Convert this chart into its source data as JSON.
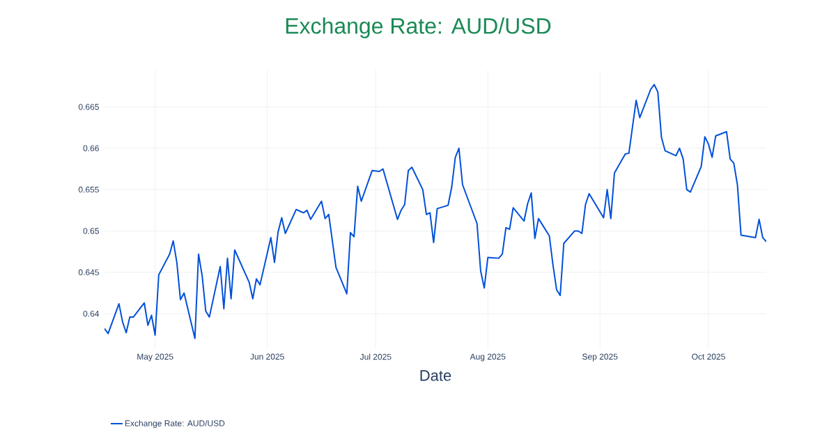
{
  "chart_data": {
    "type": "line",
    "title": "Exchange Rate: AUD/USD",
    "xlabel": "Date",
    "x": [
      "2025-04-17",
      "2025-04-18",
      "2025-04-21",
      "2025-04-22",
      "2025-04-23",
      "2025-04-24",
      "2025-04-25",
      "2025-04-28",
      "2025-04-29",
      "2025-04-30",
      "2025-05-01",
      "2025-05-02",
      "2025-05-05",
      "2025-05-06",
      "2025-05-07",
      "2025-05-08",
      "2025-05-09",
      "2025-05-12",
      "2025-05-13",
      "2025-05-14",
      "2025-05-15",
      "2025-05-16",
      "2025-05-19",
      "2025-05-20",
      "2025-05-21",
      "2025-05-22",
      "2025-05-23",
      "2025-05-27",
      "2025-05-28",
      "2025-05-29",
      "2025-05-30",
      "2025-06-02",
      "2025-06-03",
      "2025-06-04",
      "2025-06-05",
      "2025-06-06",
      "2025-06-09",
      "2025-06-10",
      "2025-06-11",
      "2025-06-12",
      "2025-06-13",
      "2025-06-16",
      "2025-06-17",
      "2025-06-18",
      "2025-06-20",
      "2025-06-23",
      "2025-06-24",
      "2025-06-25",
      "2025-06-26",
      "2025-06-27",
      "2025-06-30",
      "2025-07-02",
      "2025-07-03",
      "2025-07-07",
      "2025-07-08",
      "2025-07-09",
      "2025-07-10",
      "2025-07-11",
      "2025-07-14",
      "2025-07-15",
      "2025-07-16",
      "2025-07-17",
      "2025-07-18",
      "2025-07-21",
      "2025-07-22",
      "2025-07-23",
      "2025-07-24",
      "2025-07-25",
      "2025-07-29",
      "2025-07-30",
      "2025-07-31",
      "2025-08-01",
      "2025-08-04",
      "2025-08-05",
      "2025-08-06",
      "2025-08-07",
      "2025-08-08",
      "2025-08-11",
      "2025-08-12",
      "2025-08-13",
      "2025-08-14",
      "2025-08-15",
      "2025-08-18",
      "2025-08-19",
      "2025-08-20",
      "2025-08-21",
      "2025-08-22",
      "2025-08-25",
      "2025-08-26",
      "2025-08-27",
      "2025-08-28",
      "2025-08-29",
      "2025-09-02",
      "2025-09-03",
      "2025-09-04",
      "2025-09-05",
      "2025-09-08",
      "2025-09-09",
      "2025-09-11",
      "2025-09-12",
      "2025-09-15",
      "2025-09-16",
      "2025-09-17",
      "2025-09-18",
      "2025-09-19",
      "2025-09-22",
      "2025-09-23",
      "2025-09-24",
      "2025-09-25",
      "2025-09-26",
      "2025-09-29",
      "2025-09-30",
      "2025-10-01",
      "2025-10-02",
      "2025-10-03",
      "2025-10-06",
      "2025-10-07",
      "2025-10-08",
      "2025-10-09",
      "2025-10-10",
      "2025-10-14",
      "2025-10-15",
      "2025-10-16",
      "2025-10-17"
    ],
    "series": [
      {
        "name": "Exchange Rate: AUD/USD",
        "color": "#0050d8",
        "values": [
          0.6382,
          0.6376,
          0.6412,
          0.639,
          0.6377,
          0.6396,
          0.6396,
          0.6413,
          0.6386,
          0.6398,
          0.6374,
          0.6447,
          0.6472,
          0.6488,
          0.6462,
          0.6417,
          0.6425,
          0.637,
          0.6472,
          0.6446,
          0.6403,
          0.6396,
          0.6457,
          0.6406,
          0.6467,
          0.6418,
          0.6477,
          0.6438,
          0.6418,
          0.6442,
          0.6435,
          0.6492,
          0.6462,
          0.6499,
          0.6516,
          0.6497,
          0.6526,
          0.6524,
          0.6522,
          0.6525,
          0.6514,
          0.6536,
          0.6515,
          0.652,
          0.6456,
          0.6424,
          0.6498,
          0.6493,
          0.6554,
          0.6536,
          0.6573,
          0.6572,
          0.6575,
          0.6514,
          0.6525,
          0.6532,
          0.6573,
          0.6577,
          0.655,
          0.652,
          0.6522,
          0.6486,
          0.6527,
          0.6531,
          0.6553,
          0.6589,
          0.66,
          0.6556,
          0.6509,
          0.6452,
          0.6431,
          0.6468,
          0.6467,
          0.6472,
          0.6504,
          0.6502,
          0.6528,
          0.6512,
          0.6533,
          0.6546,
          0.6491,
          0.6515,
          0.6494,
          0.6459,
          0.6429,
          0.6422,
          0.6485,
          0.65,
          0.65,
          0.6497,
          0.6532,
          0.6545,
          0.6516,
          0.655,
          0.6515,
          0.657,
          0.6593,
          0.6594,
          0.6658,
          0.6637,
          0.6671,
          0.6677,
          0.6668,
          0.6613,
          0.6597,
          0.6591,
          0.66,
          0.6587,
          0.655,
          0.6547,
          0.6578,
          0.6614,
          0.6605,
          0.6589,
          0.6615,
          0.662,
          0.6587,
          0.6582,
          0.6556,
          0.6495,
          0.6492,
          0.6514,
          0.6492,
          0.6487
        ]
      }
    ],
    "xlim": [
      "2025-04-17",
      "2025-10-17"
    ],
    "xticks": [
      {
        "value": "2025-05-01",
        "label": "May 2025"
      },
      {
        "value": "2025-06-01",
        "label": "Jun 2025"
      },
      {
        "value": "2025-07-01",
        "label": "Jul 2025"
      },
      {
        "value": "2025-08-01",
        "label": "Aug 2025"
      },
      {
        "value": "2025-09-01",
        "label": "Sep 2025"
      },
      {
        "value": "2025-10-01",
        "label": "Oct 2025"
      }
    ],
    "ylim": [
      0.6358,
      0.6695
    ],
    "yticks": [
      0.64,
      0.645,
      0.65,
      0.655,
      0.66,
      0.665
    ],
    "grid": true,
    "legend": "bottom left",
    "marker": "none",
    "line_style": "solid"
  }
}
